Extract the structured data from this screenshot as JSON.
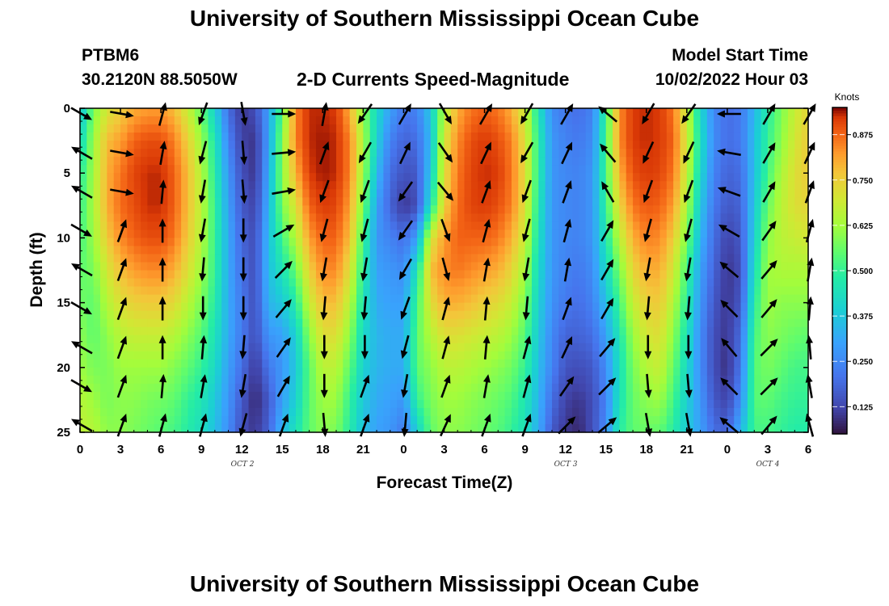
{
  "page": {
    "title_top": "University of Southern Mississippi Ocean Cube",
    "title_bottom": "University of Southern Mississippi Ocean Cube",
    "station": "PTBM6",
    "coords": "30.2120N  88.5050W",
    "subtitle": "2-D Currents Speed-Magnitude",
    "model_start_label": "Model Start Time",
    "model_start_value": "10/02/2022 Hour 03"
  },
  "chart_data": {
    "type": "heatmap",
    "title": "2-D Currents Speed-Magnitude",
    "xlabel": "Forecast Time(Z)",
    "ylabel": "Depth (ft)",
    "x_tick_labels": [
      "0",
      "3",
      "6",
      "9",
      "12",
      "15",
      "18",
      "21",
      "0",
      "3",
      "6",
      "9",
      "12",
      "15",
      "18",
      "21",
      "0",
      "3",
      "6"
    ],
    "x_hours": [
      0,
      3,
      6,
      9,
      12,
      15,
      18,
      21,
      24,
      27,
      30,
      33,
      36,
      39,
      42,
      45,
      48,
      51,
      54
    ],
    "xlim": [
      0,
      54
    ],
    "y_tick_labels": [
      "0",
      "5",
      "10",
      "15",
      "20",
      "25"
    ],
    "y_ticks": [
      0,
      5,
      10,
      15,
      20,
      25
    ],
    "ylim": [
      0,
      25
    ],
    "date_labels": [
      {
        "text": "OCT 2",
        "hour": 12
      },
      {
        "text": "OCT 3",
        "hour": 36
      },
      {
        "text": "OCT 4",
        "hour": 51
      }
    ],
    "colorbar": {
      "label": "Knots",
      "ticks": [
        "0.125",
        "0.250",
        "0.375",
        "0.500",
        "0.625",
        "0.750",
        "0.875"
      ],
      "tick_values": [
        0.125,
        0.25,
        0.375,
        0.5,
        0.625,
        0.75,
        0.875
      ],
      "range": [
        0.05,
        0.95
      ]
    },
    "speed_profile": {
      "hours": [
        0,
        1,
        2,
        3,
        4,
        5,
        6,
        7,
        8,
        9,
        10,
        11,
        12,
        13,
        14,
        15,
        16,
        17,
        18,
        19,
        20,
        21,
        22,
        23,
        24,
        25,
        26,
        27,
        28,
        29,
        30,
        31,
        32,
        33,
        34,
        35,
        36,
        37,
        38,
        39,
        40,
        41,
        42,
        43,
        44,
        45,
        46,
        47,
        48,
        49,
        50,
        51,
        52,
        53,
        54
      ],
      "depths": [
        0,
        2.5,
        5,
        7.5,
        10,
        12.5,
        15,
        17.5,
        20,
        22.5,
        25
      ],
      "values": [
        [
          0.36,
          0.42,
          0.48,
          0.5,
          0.52,
          0.55,
          0.57,
          0.6,
          0.62,
          0.65,
          0.67
        ],
        [
          0.58,
          0.62,
          0.63,
          0.64,
          0.62,
          0.58,
          0.55,
          0.55,
          0.58,
          0.62,
          0.65
        ],
        [
          0.7,
          0.78,
          0.8,
          0.8,
          0.76,
          0.7,
          0.65,
          0.6,
          0.58,
          0.58,
          0.6
        ],
        [
          0.75,
          0.82,
          0.86,
          0.87,
          0.84,
          0.78,
          0.72,
          0.66,
          0.62,
          0.6,
          0.6
        ],
        [
          0.8,
          0.88,
          0.91,
          0.9,
          0.88,
          0.82,
          0.75,
          0.68,
          0.62,
          0.6,
          0.58
        ],
        [
          0.82,
          0.9,
          0.93,
          0.93,
          0.9,
          0.84,
          0.76,
          0.68,
          0.62,
          0.58,
          0.56
        ],
        [
          0.82,
          0.9,
          0.93,
          0.93,
          0.9,
          0.84,
          0.76,
          0.68,
          0.62,
          0.57,
          0.54
        ],
        [
          0.78,
          0.85,
          0.88,
          0.88,
          0.86,
          0.8,
          0.73,
          0.65,
          0.59,
          0.55,
          0.52
        ],
        [
          0.68,
          0.75,
          0.78,
          0.78,
          0.76,
          0.72,
          0.66,
          0.6,
          0.55,
          0.5,
          0.48
        ],
        [
          0.55,
          0.62,
          0.65,
          0.66,
          0.65,
          0.62,
          0.58,
          0.54,
          0.5,
          0.46,
          0.43
        ],
        [
          0.4,
          0.46,
          0.48,
          0.5,
          0.5,
          0.5,
          0.48,
          0.45,
          0.42,
          0.38,
          0.36
        ],
        [
          0.2,
          0.24,
          0.28,
          0.3,
          0.32,
          0.32,
          0.32,
          0.32,
          0.3,
          0.28,
          0.26
        ],
        [
          0.1,
          0.12,
          0.14,
          0.16,
          0.18,
          0.2,
          0.22,
          0.22,
          0.2,
          0.16,
          0.14
        ],
        [
          0.14,
          0.1,
          0.1,
          0.12,
          0.14,
          0.14,
          0.14,
          0.14,
          0.1,
          0.08,
          0.1
        ],
        [
          0.3,
          0.3,
          0.32,
          0.34,
          0.36,
          0.36,
          0.34,
          0.28,
          0.22,
          0.16,
          0.18
        ],
        [
          0.55,
          0.6,
          0.6,
          0.58,
          0.52,
          0.45,
          0.38,
          0.3,
          0.28,
          0.3,
          0.35
        ],
        [
          0.85,
          0.85,
          0.8,
          0.72,
          0.65,
          0.56,
          0.48,
          0.4,
          0.38,
          0.4,
          0.45
        ],
        [
          0.93,
          0.93,
          0.92,
          0.88,
          0.82,
          0.75,
          0.68,
          0.6,
          0.55,
          0.55,
          0.55
        ],
        [
          0.93,
          0.94,
          0.94,
          0.92,
          0.88,
          0.84,
          0.78,
          0.72,
          0.66,
          0.62,
          0.6
        ],
        [
          0.92,
          0.93,
          0.93,
          0.91,
          0.88,
          0.84,
          0.78,
          0.72,
          0.66,
          0.62,
          0.58
        ],
        [
          0.8,
          0.85,
          0.85,
          0.82,
          0.78,
          0.72,
          0.66,
          0.6,
          0.55,
          0.5,
          0.48
        ],
        [
          0.6,
          0.64,
          0.62,
          0.58,
          0.52,
          0.48,
          0.45,
          0.42,
          0.4,
          0.38,
          0.36
        ],
        [
          0.42,
          0.4,
          0.35,
          0.3,
          0.28,
          0.3,
          0.32,
          0.34,
          0.34,
          0.32,
          0.3
        ],
        [
          0.3,
          0.24,
          0.2,
          0.18,
          0.24,
          0.28,
          0.3,
          0.32,
          0.32,
          0.3,
          0.28
        ],
        [
          0.22,
          0.18,
          0.15,
          0.1,
          0.2,
          0.26,
          0.3,
          0.32,
          0.32,
          0.28,
          0.22
        ],
        [
          0.24,
          0.2,
          0.16,
          0.14,
          0.3,
          0.45,
          0.52,
          0.55,
          0.55,
          0.5,
          0.4
        ],
        [
          0.38,
          0.35,
          0.38,
          0.44,
          0.7,
          0.78,
          0.72,
          0.65,
          0.6,
          0.58,
          0.55
        ],
        [
          0.65,
          0.7,
          0.72,
          0.75,
          0.82,
          0.84,
          0.8,
          0.72,
          0.66,
          0.62,
          0.6
        ],
        [
          0.8,
          0.84,
          0.86,
          0.87,
          0.88,
          0.86,
          0.8,
          0.72,
          0.66,
          0.62,
          0.6
        ],
        [
          0.86,
          0.9,
          0.91,
          0.91,
          0.88,
          0.84,
          0.78,
          0.7,
          0.64,
          0.6,
          0.58
        ],
        [
          0.88,
          0.92,
          0.93,
          0.92,
          0.88,
          0.82,
          0.75,
          0.68,
          0.62,
          0.58,
          0.56
        ],
        [
          0.86,
          0.9,
          0.92,
          0.9,
          0.86,
          0.8,
          0.73,
          0.66,
          0.6,
          0.56,
          0.54
        ],
        [
          0.8,
          0.85,
          0.86,
          0.85,
          0.8,
          0.74,
          0.68,
          0.62,
          0.57,
          0.53,
          0.5
        ],
        [
          0.68,
          0.72,
          0.73,
          0.72,
          0.68,
          0.63,
          0.58,
          0.54,
          0.5,
          0.46,
          0.44
        ],
        [
          0.45,
          0.48,
          0.48,
          0.46,
          0.44,
          0.42,
          0.4,
          0.38,
          0.36,
          0.34,
          0.32
        ],
        [
          0.26,
          0.28,
          0.28,
          0.28,
          0.28,
          0.28,
          0.27,
          0.25,
          0.24,
          0.2,
          0.16
        ],
        [
          0.22,
          0.24,
          0.25,
          0.25,
          0.25,
          0.24,
          0.22,
          0.18,
          0.15,
          0.12,
          0.1
        ],
        [
          0.2,
          0.22,
          0.24,
          0.24,
          0.24,
          0.22,
          0.2,
          0.18,
          0.14,
          0.1,
          0.08
        ],
        [
          0.24,
          0.26,
          0.28,
          0.28,
          0.28,
          0.26,
          0.24,
          0.2,
          0.16,
          0.14,
          0.14
        ],
        [
          0.5,
          0.52,
          0.52,
          0.5,
          0.46,
          0.42,
          0.36,
          0.3,
          0.26,
          0.24,
          0.26
        ],
        [
          0.84,
          0.84,
          0.8,
          0.74,
          0.66,
          0.58,
          0.52,
          0.46,
          0.44,
          0.45,
          0.48
        ],
        [
          0.92,
          0.92,
          0.9,
          0.86,
          0.8,
          0.74,
          0.68,
          0.62,
          0.58,
          0.56,
          0.55
        ],
        [
          0.93,
          0.93,
          0.92,
          0.89,
          0.85,
          0.8,
          0.75,
          0.7,
          0.65,
          0.6,
          0.56
        ],
        [
          0.92,
          0.92,
          0.91,
          0.88,
          0.84,
          0.8,
          0.76,
          0.72,
          0.68,
          0.62,
          0.55
        ],
        [
          0.86,
          0.88,
          0.86,
          0.82,
          0.76,
          0.7,
          0.65,
          0.6,
          0.56,
          0.52,
          0.48
        ],
        [
          0.68,
          0.7,
          0.68,
          0.64,
          0.58,
          0.52,
          0.48,
          0.45,
          0.42,
          0.4,
          0.38
        ],
        [
          0.42,
          0.44,
          0.42,
          0.38,
          0.34,
          0.3,
          0.28,
          0.26,
          0.26,
          0.28,
          0.3
        ],
        [
          0.25,
          0.26,
          0.24,
          0.22,
          0.2,
          0.18,
          0.16,
          0.14,
          0.14,
          0.16,
          0.2
        ],
        [
          0.2,
          0.2,
          0.18,
          0.16,
          0.12,
          0.1,
          0.1,
          0.1,
          0.09,
          0.12,
          0.18
        ],
        [
          0.22,
          0.22,
          0.2,
          0.18,
          0.16,
          0.14,
          0.16,
          0.2,
          0.22,
          0.26,
          0.34
        ],
        [
          0.34,
          0.36,
          0.36,
          0.38,
          0.4,
          0.44,
          0.48,
          0.52,
          0.54,
          0.54,
          0.52
        ],
        [
          0.48,
          0.5,
          0.52,
          0.56,
          0.6,
          0.62,
          0.62,
          0.6,
          0.58,
          0.55,
          0.52
        ],
        [
          0.58,
          0.6,
          0.64,
          0.66,
          0.66,
          0.64,
          0.6,
          0.58,
          0.55,
          0.52,
          0.5
        ],
        [
          0.68,
          0.7,
          0.72,
          0.72,
          0.68,
          0.64,
          0.6,
          0.56,
          0.52,
          0.5,
          0.48
        ],
        [
          0.74,
          0.76,
          0.76,
          0.74,
          0.7,
          0.64,
          0.6,
          0.55,
          0.52,
          0.5,
          0.48
        ]
      ]
    },
    "vectors": {
      "depths": [
        0,
        3,
        6,
        9,
        12,
        15,
        18,
        21,
        24
      ],
      "hours": [
        0,
        3,
        6,
        9,
        12,
        15,
        18,
        21,
        24,
        27,
        30,
        33,
        36,
        39,
        42,
        45,
        48,
        51,
        54
      ],
      "directions_deg_to": [
        [
          120,
          300,
          300,
          120,
          300,
          120,
          300,
          120,
          300
        ],
        [
          100,
          100,
          100,
          20,
          20,
          20,
          20,
          20,
          20
        ],
        [
          15,
          10,
          5,
          0,
          0,
          0,
          0,
          5,
          15
        ],
        [
          200,
          195,
          190,
          190,
          185,
          180,
          5,
          10,
          15
        ],
        [
          170,
          175,
          175,
          180,
          180,
          180,
          185,
          190,
          195
        ],
        [
          90,
          85,
          80,
          60,
          45,
          40,
          35,
          30,
          20
        ],
        [
          10,
          20,
          200,
          195,
          190,
          185,
          180,
          180,
          175
        ],
        [
          215,
          210,
          200,
          195,
          190,
          185,
          180,
          20,
          20
        ],
        [
          30,
          25,
          215,
          215,
          210,
          200,
          195,
          190,
          185
        ],
        [
          150,
          145,
          140,
          160,
          165,
          15,
          15,
          20,
          25
        ],
        [
          30,
          25,
          20,
          15,
          10,
          5,
          5,
          10,
          20
        ],
        [
          210,
          210,
          200,
          195,
          190,
          185,
          15,
          15,
          20
        ],
        [
          30,
          25,
          20,
          15,
          10,
          20,
          25,
          35,
          45
        ],
        [
          310,
          320,
          330,
          30,
          30,
          30,
          40,
          45,
          50
        ],
        [
          210,
          205,
          200,
          195,
          190,
          185,
          180,
          175,
          170
        ],
        [
          215,
          205,
          200,
          195,
          190,
          185,
          180,
          175,
          170
        ],
        [
          270,
          280,
          290,
          300,
          310,
          315,
          320,
          315,
          310
        ],
        [
          30,
          30,
          30,
          35,
          40,
          40,
          45,
          45,
          40
        ],
        [
          30,
          25,
          20,
          15,
          10,
          5,
          355,
          350,
          345
        ]
      ]
    }
  }
}
